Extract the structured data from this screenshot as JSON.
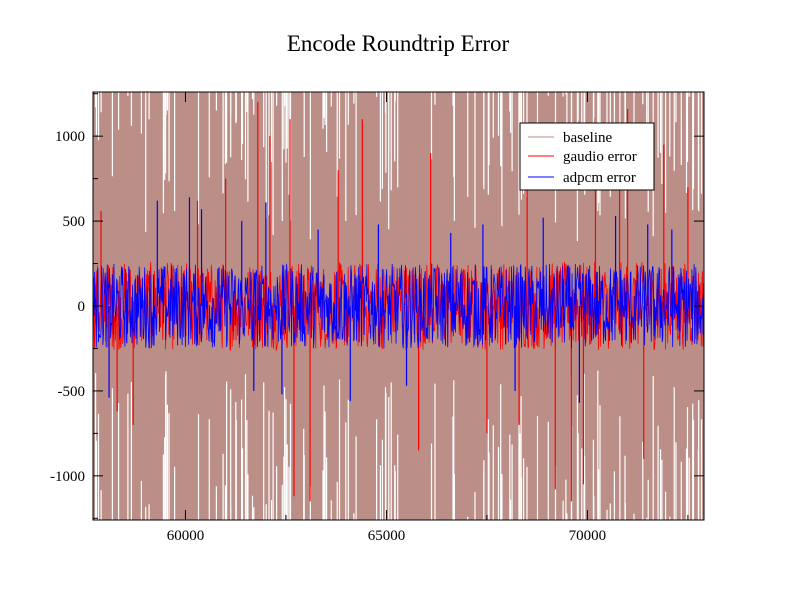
{
  "chart_data": {
    "type": "line",
    "title": "Encode Roundtrip Error",
    "xlabel": "",
    "ylabel": "",
    "xlim": [
      57700,
      72900
    ],
    "ylim": [
      -1260,
      1260
    ],
    "xticks": [
      60000,
      65000,
      70000
    ],
    "xtick_labels": [
      "60000",
      "65000",
      "70000"
    ],
    "yticks": [
      1000,
      500,
      0,
      -500,
      -1000
    ],
    "ytick_labels": [
      "1000",
      "500",
      "0",
      "-500",
      "-1000"
    ],
    "grid": false,
    "legend_position": "top-right",
    "series": [
      {
        "name": "baseline",
        "color": "#bb8f88",
        "typical_amplitude": 1260,
        "peak_amplitude": 1260
      },
      {
        "name": "gaudio error",
        "color": "#ff0000",
        "typical_amplitude": 260,
        "peak_amplitude": 1220,
        "spike_x": [
          57900,
          58300,
          58700,
          60300,
          61000,
          61800,
          62100,
          62600,
          62700,
          63100,
          63800,
          64400,
          65800,
          66100,
          67500,
          68300,
          68500,
          69200,
          69600,
          69900,
          70200,
          70800,
          71000,
          71400,
          71900,
          72500
        ],
        "spike_y": [
          560,
          -620,
          -700,
          620,
          750,
          1200,
          1000,
          1100,
          -1120,
          -1150,
          800,
          1100,
          -850,
          900,
          -750,
          -700,
          1000,
          -1080,
          -1150,
          -1050,
          820,
          1050,
          1160,
          -900,
          950,
          700
        ]
      },
      {
        "name": "adpcm error",
        "color": "#0000ff",
        "typical_amplitude": 250,
        "peak_amplitude": 640,
        "spike_x": [
          58100,
          59300,
          60100,
          60400,
          61400,
          61700,
          62000,
          62400,
          63300,
          64100,
          64800,
          65500,
          66600,
          67400,
          68200,
          68900,
          69800,
          70700,
          71500,
          72100
        ],
        "spike_y": [
          -540,
          620,
          640,
          570,
          500,
          -500,
          610,
          -520,
          450,
          -560,
          480,
          -470,
          430,
          480,
          -500,
          520,
          -570,
          530,
          480,
          450
        ]
      }
    ]
  }
}
